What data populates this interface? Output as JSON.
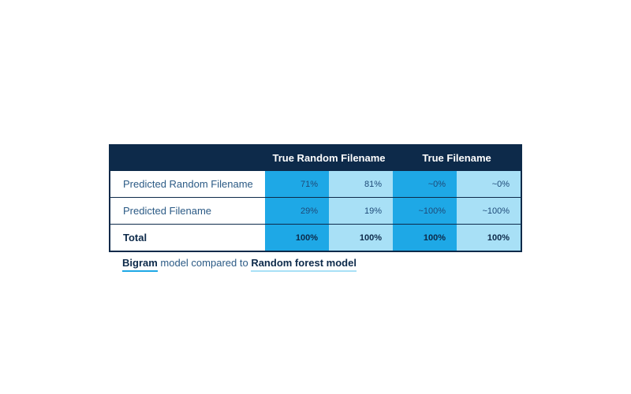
{
  "chart_data": {
    "type": "table",
    "headers": {
      "empty": "",
      "col_group_1": "True Random Filename",
      "col_group_2": "True Filename"
    },
    "rows": [
      {
        "label": "Predicted Random Filename",
        "values": [
          "71%",
          "81%",
          "~0%",
          "~0%"
        ]
      },
      {
        "label": "Predicted Filename",
        "values": [
          "29%",
          "19%",
          "~100%",
          "~100%"
        ]
      },
      {
        "label": "Total",
        "values": [
          "100%",
          "100%",
          "100%",
          "100%"
        ]
      }
    ],
    "caption": {
      "model_a": "Bigram",
      "middle": " model compared to ",
      "model_b": "Random forest model"
    },
    "colors": {
      "header_bg": "#0d2a4a",
      "series_a": "#1ea8e6",
      "series_b": "#a8e0f6"
    }
  }
}
